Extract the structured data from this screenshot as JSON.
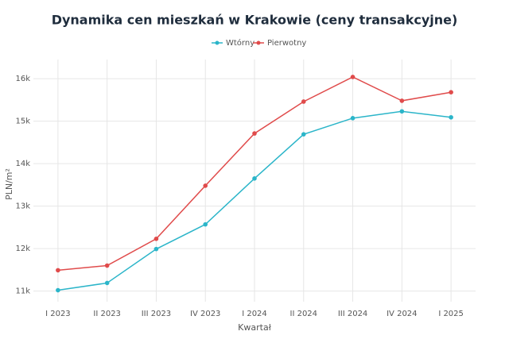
{
  "chart_data": {
    "type": "line",
    "title": "Dynamika cen mieszkań w Krakowie (ceny transakcyjne)",
    "x_label": "Kwartał",
    "y_label": "PLN/m²",
    "categories": [
      "I 2023",
      "II 2023",
      "III 2023",
      "IV 2023",
      "I 2024",
      "II 2024",
      "III 2024",
      "IV 2024",
      "I 2025"
    ],
    "series": [
      {
        "name": "Wtórny",
        "color": "#2bb5c9",
        "values": [
          11020,
          11190,
          11990,
          12570,
          13650,
          14690,
          15070,
          15230,
          15090
        ]
      },
      {
        "name": "Pierwotny",
        "color": "#e04b4b",
        "values": [
          11490,
          11600,
          12230,
          13480,
          14710,
          15460,
          16040,
          15480,
          15680
        ]
      }
    ],
    "ylim": [
      10750,
      16450
    ],
    "yticks": [
      {
        "value": 11000,
        "label": "11k"
      },
      {
        "value": 12000,
        "label": "12k"
      },
      {
        "value": 13000,
        "label": "13k"
      },
      {
        "value": 14000,
        "label": "14k"
      },
      {
        "value": 15000,
        "label": "15k"
      },
      {
        "value": 16000,
        "label": "16k"
      }
    ],
    "grid": true
  }
}
